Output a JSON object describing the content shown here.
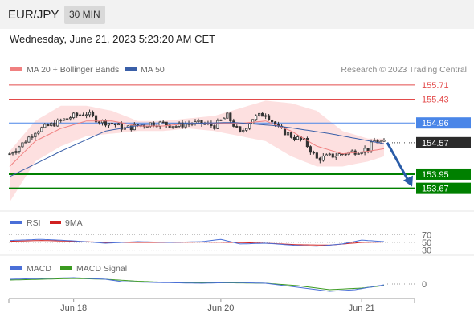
{
  "header": {
    "symbol": "EUR/JPY",
    "timeframe": "30 MIN",
    "datetime": "Wednesday, June 21, 2023 5:23:20 AM CET"
  },
  "legend": {
    "ma20": "MA 20 + Bollinger Bands",
    "ma50": "MA 50",
    "credit": "Research © 2023 Trading Central",
    "rsi": "RSI",
    "rsi_ma": "9MA",
    "macd": "MACD",
    "macd_signal": "MACD Signal"
  },
  "colors": {
    "ma20": "#f08080",
    "ma50": "#3a5fa8",
    "bands": "#fcd6d6",
    "resistance": "#e34b4b",
    "current": "#4a86e8",
    "support": "#008000",
    "candle": "#333333",
    "arrow": "#2a5ca8"
  },
  "chart_data": [
    {
      "type": "candlestick",
      "ylim": [
        153.3,
        155.85
      ],
      "levels": [
        {
          "value": 155.71,
          "label": "155.71",
          "kind": "resistance"
        },
        {
          "value": 155.43,
          "label": "155.43",
          "kind": "resistance"
        },
        {
          "value": 154.96,
          "label": "154.96",
          "kind": "pivot"
        },
        {
          "value": 154.57,
          "label": "154.57",
          "kind": "current"
        },
        {
          "value": 153.95,
          "label": "153.95",
          "kind": "support"
        },
        {
          "value": 153.67,
          "label": "153.67",
          "kind": "support"
        }
      ],
      "x_ticks": [
        {
          "label": "Jun 18",
          "index": 20
        },
        {
          "label": "Jun 20",
          "index": 66
        },
        {
          "label": "Jun 21",
          "index": 110
        }
      ],
      "n_bars": 118,
      "anchors": [
        [
          0,
          154.35
        ],
        [
          4,
          154.55
        ],
        [
          8,
          154.8
        ],
        [
          12,
          154.9
        ],
        [
          16,
          155.0
        ],
        [
          20,
          155.1
        ],
        [
          24,
          155.15
        ],
        [
          28,
          155.0
        ],
        [
          32,
          154.95
        ],
        [
          36,
          154.85
        ],
        [
          40,
          154.9
        ],
        [
          44,
          154.95
        ],
        [
          48,
          154.95
        ],
        [
          52,
          154.9
        ],
        [
          56,
          154.95
        ],
        [
          60,
          154.95
        ],
        [
          64,
          154.9
        ],
        [
          68,
          155.1
        ],
        [
          72,
          154.75
        ],
        [
          76,
          155.05
        ],
        [
          80,
          155.15
        ],
        [
          84,
          154.85
        ],
        [
          88,
          154.7
        ],
        [
          92,
          154.6
        ],
        [
          96,
          154.25
        ],
        [
          100,
          154.3
        ],
        [
          104,
          154.35
        ],
        [
          108,
          154.4
        ],
        [
          112,
          154.45
        ],
        [
          114,
          154.6
        ],
        [
          117,
          154.57
        ]
      ],
      "ma20": [
        [
          0,
          154.1
        ],
        [
          8,
          154.6
        ],
        [
          16,
          154.85
        ],
        [
          24,
          155.0
        ],
        [
          32,
          155.0
        ],
        [
          40,
          154.9
        ],
        [
          48,
          154.9
        ],
        [
          56,
          154.95
        ],
        [
          64,
          154.95
        ],
        [
          72,
          154.95
        ],
        [
          80,
          155.0
        ],
        [
          88,
          154.8
        ],
        [
          96,
          154.5
        ],
        [
          104,
          154.35
        ],
        [
          112,
          154.4
        ],
        [
          117,
          154.45
        ]
      ],
      "ma50": [
        [
          0,
          153.9
        ],
        [
          16,
          154.4
        ],
        [
          30,
          154.8
        ],
        [
          42,
          154.93
        ],
        [
          56,
          154.95
        ],
        [
          70,
          154.97
        ],
        [
          84,
          154.9
        ],
        [
          100,
          154.75
        ],
        [
          117,
          154.55
        ]
      ],
      "bands": {
        "upper": [
          [
            0,
            154.4
          ],
          [
            8,
            155.0
          ],
          [
            16,
            155.3
          ],
          [
            24,
            155.3
          ],
          [
            32,
            155.2
          ],
          [
            40,
            155.0
          ],
          [
            48,
            155.0
          ],
          [
            56,
            155.05
          ],
          [
            64,
            155.1
          ],
          [
            72,
            155.25
          ],
          [
            80,
            155.4
          ],
          [
            88,
            155.35
          ],
          [
            96,
            155.2
          ],
          [
            104,
            154.8
          ],
          [
            112,
            154.65
          ],
          [
            117,
            154.65
          ]
        ],
        "lower": [
          [
            0,
            153.4
          ],
          [
            8,
            154.2
          ],
          [
            16,
            154.5
          ],
          [
            24,
            154.7
          ],
          [
            32,
            154.75
          ],
          [
            40,
            154.8
          ],
          [
            48,
            154.8
          ],
          [
            56,
            154.85
          ],
          [
            64,
            154.8
          ],
          [
            72,
            154.7
          ],
          [
            80,
            154.6
          ],
          [
            88,
            154.3
          ],
          [
            96,
            154.1
          ],
          [
            104,
            154.1
          ],
          [
            112,
            154.2
          ],
          [
            117,
            154.3
          ]
        ]
      },
      "forecast_arrow": {
        "from_value": 154.57,
        "to_value": 153.67
      }
    },
    {
      "type": "line",
      "name": "RSI",
      "ylim": [
        25,
        75
      ],
      "levels": [
        {
          "value": 70,
          "label": "70"
        },
        {
          "value": 50,
          "label": "50"
        },
        {
          "value": 30,
          "label": "30"
        }
      ],
      "rsi": [
        [
          0,
          55
        ],
        [
          10,
          58
        ],
        [
          20,
          54
        ],
        [
          30,
          48
        ],
        [
          40,
          52
        ],
        [
          50,
          50
        ],
        [
          60,
          52
        ],
        [
          66,
          58
        ],
        [
          72,
          46
        ],
        [
          80,
          48
        ],
        [
          90,
          42
        ],
        [
          96,
          40
        ],
        [
          104,
          46
        ],
        [
          110,
          56
        ],
        [
          117,
          52
        ]
      ],
      "rsi_ma": [
        [
          0,
          53
        ],
        [
          10,
          55
        ],
        [
          20,
          53
        ],
        [
          30,
          50
        ],
        [
          40,
          50
        ],
        [
          50,
          50
        ],
        [
          60,
          51
        ],
        [
          70,
          50
        ],
        [
          80,
          48
        ],
        [
          90,
          44
        ],
        [
          100,
          43
        ],
        [
          110,
          50
        ],
        [
          117,
          51
        ]
      ]
    },
    {
      "type": "line",
      "name": "MACD",
      "ylim": [
        -0.16,
        0.12
      ],
      "levels": [
        {
          "value": 0,
          "label": "0"
        }
      ],
      "macd": [
        [
          0,
          0.06
        ],
        [
          10,
          0.07
        ],
        [
          20,
          0.08
        ],
        [
          30,
          0.06
        ],
        [
          35,
          0.03
        ],
        [
          45,
          0.02
        ],
        [
          60,
          0.01
        ],
        [
          70,
          0.02
        ],
        [
          80,
          0.01
        ],
        [
          90,
          -0.04
        ],
        [
          100,
          -0.09
        ],
        [
          108,
          -0.07
        ],
        [
          117,
          -0.01
        ]
      ],
      "signal": [
        [
          0,
          0.05
        ],
        [
          10,
          0.06
        ],
        [
          20,
          0.07
        ],
        [
          30,
          0.06
        ],
        [
          40,
          0.035
        ],
        [
          50,
          0.02
        ],
        [
          60,
          0.015
        ],
        [
          70,
          0.015
        ],
        [
          80,
          0.01
        ],
        [
          90,
          -0.02
        ],
        [
          100,
          -0.07
        ],
        [
          110,
          -0.05
        ],
        [
          117,
          -0.02
        ]
      ]
    }
  ]
}
